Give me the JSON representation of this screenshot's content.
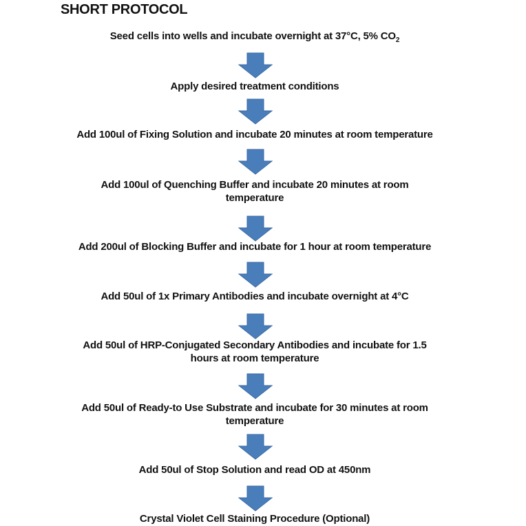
{
  "title": "SHORT PROTOCOL",
  "arrow_color": "#4a7ebb",
  "step1": {
    "text": "Seed cells into wells and incubate overnight at 37°C, 5% CO",
    "subscript": "2"
  },
  "steps": [
    {
      "lines": [
        "Apply desired treatment conditions"
      ]
    },
    {
      "lines": [
        "Add 100ul of Fixing Solution and incubate 20 minutes at room temperature"
      ]
    },
    {
      "lines": [
        "Add 100ul of Quenching Buffer and incubate 20 minutes at room",
        "temperature"
      ]
    },
    {
      "lines": [
        "Add 200ul of Blocking Buffer and incubate for 1 hour at room temperature"
      ]
    },
    {
      "lines": [
        "Add 50ul of 1x Primary Antibodies and incubate overnight at 4°C"
      ]
    },
    {
      "lines": [
        "Add 50ul of HRP-Conjugated Secondary Antibodies and incubate for 1.5",
        "hours at room temperature"
      ]
    },
    {
      "lines": [
        "Add 50ul of Ready-to Use Substrate and incubate for 30 minutes at room",
        "temperature"
      ]
    },
    {
      "lines": [
        "Add 50ul of Stop Solution and read OD at 450nm"
      ]
    },
    {
      "lines": [
        "Crystal Violet Cell Staining Procedure (Optional)"
      ]
    }
  ]
}
